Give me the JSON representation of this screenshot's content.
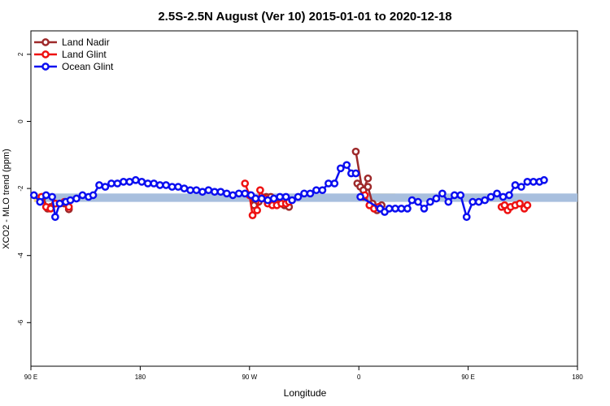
{
  "chart_data": {
    "type": "line",
    "title": "2.5S-2.5N August (Ver 10)   2015-01-01 to 2020-12-18",
    "xlabel": "Longitude",
    "ylabel": "XCO2 - MLO trend (ppm)",
    "xlim": [
      90,
      450
    ],
    "ylim": [
      -7.3,
      2.7
    ],
    "x_ticks": [
      {
        "value": 90,
        "label": "90 E"
      },
      {
        "value": 162,
        "label": "180"
      },
      {
        "value": 234,
        "label": "90 W"
      },
      {
        "value": 306,
        "label": "0"
      },
      {
        "value": 378,
        "label": "90 E"
      },
      {
        "value": 450,
        "label": "180"
      }
    ],
    "y_ticks": [
      {
        "value": 2,
        "label": "2"
      },
      {
        "value": 0,
        "label": "0"
      },
      {
        "value": -2,
        "label": "-2"
      },
      {
        "value": -4,
        "label": "-4"
      },
      {
        "value": -6,
        "label": "-6"
      }
    ],
    "legend_position": "top-left",
    "grid": false,
    "bands": [
      {
        "color": "#f5d47a",
        "y": [
          -2.4,
          -2.15
        ],
        "segments": [
          [
            92,
            100
          ],
          [
            315,
            330
          ],
          [
            392,
            400
          ]
        ]
      },
      {
        "color": "#a8bfde",
        "y": [
          -2.4,
          -2.15
        ],
        "segments": [
          [
            96,
            450
          ]
        ]
      }
    ],
    "series": [
      {
        "name": "Land Nadir",
        "color": "#9e2a2b",
        "points": [
          [
            98,
            -2.25
          ],
          [
            101,
            -2.6
          ],
          [
            103,
            -2.55
          ],
          [
            106,
            -2.45
          ],
          [
            109,
            -2.45
          ],
          [
            112,
            -2.45
          ],
          [
            115,
            -2.62
          ],
          [
            234,
            -2.2
          ],
          [
            237,
            -2.5
          ],
          [
            240,
            -2.4
          ],
          [
            242,
            -2.3
          ],
          [
            245,
            -2.25
          ],
          [
            248,
            -2.25
          ],
          [
            251,
            -2.4
          ],
          [
            254,
            -2.45
          ],
          [
            257,
            -2.5
          ],
          [
            260,
            -2.55
          ],
          [
            305,
            -1.85
          ],
          [
            307,
            -1.95
          ],
          [
            309,
            -2.05
          ],
          [
            312,
            -1.7
          ],
          [
            304,
            -0.9
          ],
          [
            309,
            -2.25
          ],
          [
            312,
            -1.95
          ],
          [
            315,
            -2.45
          ],
          [
            318,
            -2.65
          ],
          [
            321,
            -2.5
          ]
        ],
        "breaks_after": [
          6,
          16,
          20
        ]
      },
      {
        "name": "Land Glint",
        "color": "#ee1111",
        "points": [
          [
            97,
            -2.25
          ],
          [
            100,
            -2.55
          ],
          [
            103,
            -2.6
          ],
          [
            106,
            -2.45
          ],
          [
            109,
            -2.45
          ],
          [
            112,
            -2.4
          ],
          [
            115,
            -2.55
          ],
          [
            231,
            -1.85
          ],
          [
            234,
            -2.2
          ],
          [
            236,
            -2.8
          ],
          [
            239,
            -2.65
          ],
          [
            241,
            -2.05
          ],
          [
            244,
            -2.3
          ],
          [
            246,
            -2.45
          ],
          [
            249,
            -2.5
          ],
          [
            252,
            -2.5
          ],
          [
            255,
            -2.45
          ],
          [
            258,
            -2.45
          ],
          [
            260,
            -2.4
          ],
          [
            310,
            -2.2
          ],
          [
            313,
            -2.5
          ],
          [
            316,
            -2.6
          ],
          [
            319,
            -2.55
          ],
          [
            400,
            -2.55
          ],
          [
            402,
            -2.5
          ],
          [
            404,
            -2.65
          ],
          [
            406,
            -2.55
          ],
          [
            409,
            -2.5
          ],
          [
            412,
            -2.45
          ],
          [
            415,
            -2.6
          ],
          [
            417,
            -2.5
          ]
        ],
        "breaks_after": [
          6,
          18,
          22
        ]
      },
      {
        "name": "Ocean Glint",
        "color": "#0b0ef0",
        "points": [
          [
            92,
            -2.2
          ],
          [
            96,
            -2.4
          ],
          [
            100,
            -2.2
          ],
          [
            104,
            -2.25
          ],
          [
            106,
            -2.85
          ],
          [
            109,
            -2.45
          ],
          [
            113,
            -2.4
          ],
          [
            116,
            -2.35
          ],
          [
            120,
            -2.3
          ],
          [
            124,
            -2.2
          ],
          [
            128,
            -2.25
          ],
          [
            131,
            -2.2
          ],
          [
            135,
            -1.9
          ],
          [
            139,
            -1.95
          ],
          [
            143,
            -1.85
          ],
          [
            147,
            -1.85
          ],
          [
            151,
            -1.8
          ],
          [
            155,
            -1.8
          ],
          [
            159,
            -1.75
          ],
          [
            163,
            -1.8
          ],
          [
            167,
            -1.85
          ],
          [
            171,
            -1.85
          ],
          [
            175,
            -1.9
          ],
          [
            179,
            -1.9
          ],
          [
            183,
            -1.95
          ],
          [
            187,
            -1.95
          ],
          [
            191,
            -2.0
          ],
          [
            195,
            -2.05
          ],
          [
            199,
            -2.05
          ],
          [
            203,
            -2.1
          ],
          [
            207,
            -2.05
          ],
          [
            211,
            -2.1
          ],
          [
            215,
            -2.1
          ],
          [
            219,
            -2.15
          ],
          [
            223,
            -2.2
          ],
          [
            227,
            -2.15
          ],
          [
            231,
            -2.15
          ],
          [
            235,
            -2.2
          ],
          [
            238,
            -2.3
          ],
          [
            242,
            -2.3
          ],
          [
            246,
            -2.35
          ],
          [
            250,
            -2.3
          ],
          [
            254,
            -2.25
          ],
          [
            258,
            -2.25
          ],
          [
            262,
            -2.35
          ],
          [
            266,
            -2.25
          ],
          [
            270,
            -2.15
          ],
          [
            274,
            -2.15
          ],
          [
            278,
            -2.05
          ],
          [
            282,
            -2.05
          ],
          [
            286,
            -1.85
          ],
          [
            290,
            -1.85
          ],
          [
            294,
            -1.4
          ],
          [
            298,
            -1.3
          ],
          [
            301,
            -1.55
          ],
          [
            304,
            -1.55
          ],
          [
            307,
            -2.25
          ],
          [
            320,
            -2.6
          ],
          [
            323,
            -2.7
          ],
          [
            326,
            -2.6
          ],
          [
            330,
            -2.6
          ],
          [
            334,
            -2.6
          ],
          [
            338,
            -2.6
          ],
          [
            341,
            -2.35
          ],
          [
            345,
            -2.4
          ],
          [
            349,
            -2.6
          ],
          [
            353,
            -2.4
          ],
          [
            357,
            -2.3
          ],
          [
            361,
            -2.15
          ],
          [
            365,
            -2.4
          ],
          [
            369,
            -2.2
          ],
          [
            373,
            -2.2
          ],
          [
            377,
            -2.85
          ],
          [
            381,
            -2.4
          ],
          [
            385,
            -2.4
          ],
          [
            389,
            -2.35
          ],
          [
            393,
            -2.25
          ],
          [
            397,
            -2.15
          ],
          [
            401,
            -2.25
          ],
          [
            405,
            -2.2
          ],
          [
            409,
            -1.9
          ],
          [
            413,
            -1.95
          ],
          [
            417,
            -1.8
          ],
          [
            421,
            -1.8
          ],
          [
            425,
            -1.8
          ],
          [
            428,
            -1.75
          ]
        ],
        "breaks_after": [
          52,
          54,
          55
        ]
      }
    ]
  }
}
